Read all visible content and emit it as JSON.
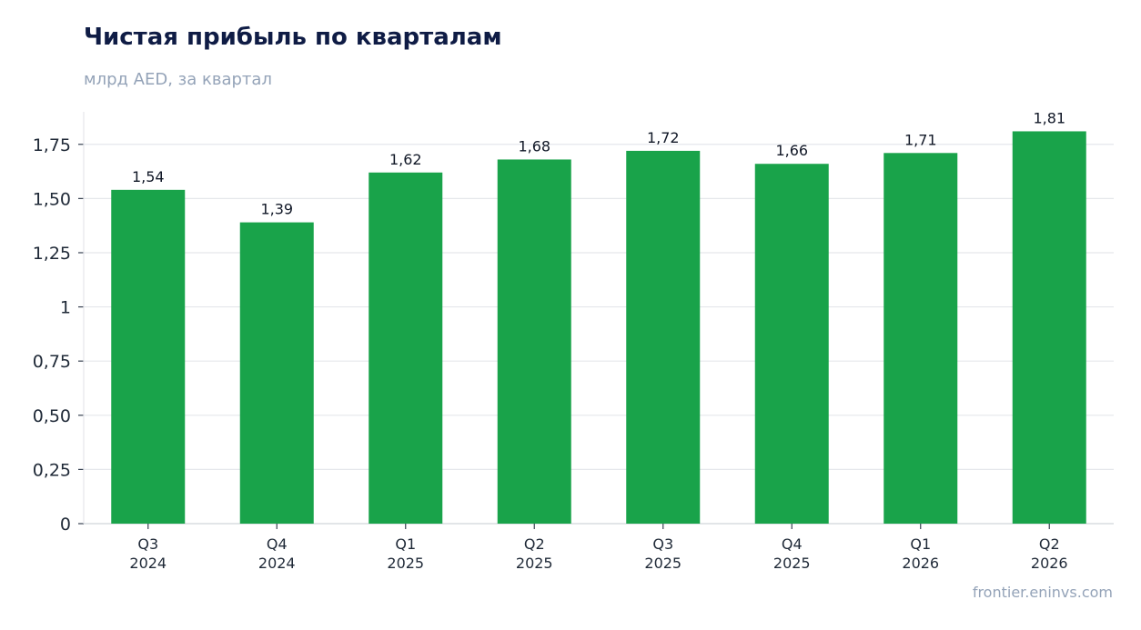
{
  "title": "Чистая прибыль по кварталам",
  "subtitle": "млрд AED, за квартал",
  "source": "frontier.eninvs.com",
  "colors": {
    "bar": "#19a34a",
    "title": "#0f1c45",
    "muted": "#94a3b8",
    "grid": "#e5e7eb"
  },
  "chart_data": {
    "type": "bar",
    "title": "Чистая прибыль по кварталам",
    "subtitle": "млрд AED, за квартал",
    "categories": [
      [
        "Q3",
        "2024"
      ],
      [
        "Q4",
        "2024"
      ],
      [
        "Q1",
        "2025"
      ],
      [
        "Q2",
        "2025"
      ],
      [
        "Q3",
        "2025"
      ],
      [
        "Q4",
        "2025"
      ],
      [
        "Q1",
        "2026"
      ],
      [
        "Q2",
        "2026"
      ]
    ],
    "values": [
      1.54,
      1.39,
      1.62,
      1.68,
      1.72,
      1.66,
      1.71,
      1.81
    ],
    "value_labels": [
      "1,54",
      "1,39",
      "1,62",
      "1,68",
      "1,72",
      "1,66",
      "1,71",
      "1,81"
    ],
    "yticks": [
      0,
      0.25,
      0.5,
      0.75,
      1,
      1.25,
      1.5,
      1.75
    ],
    "ytick_labels": [
      "0",
      "0,25",
      "0,50",
      "0,75",
      "1",
      "1,25",
      "1,50",
      "1,75"
    ],
    "ylim": [
      0,
      1.9
    ],
    "grid": true,
    "legend": "none"
  }
}
